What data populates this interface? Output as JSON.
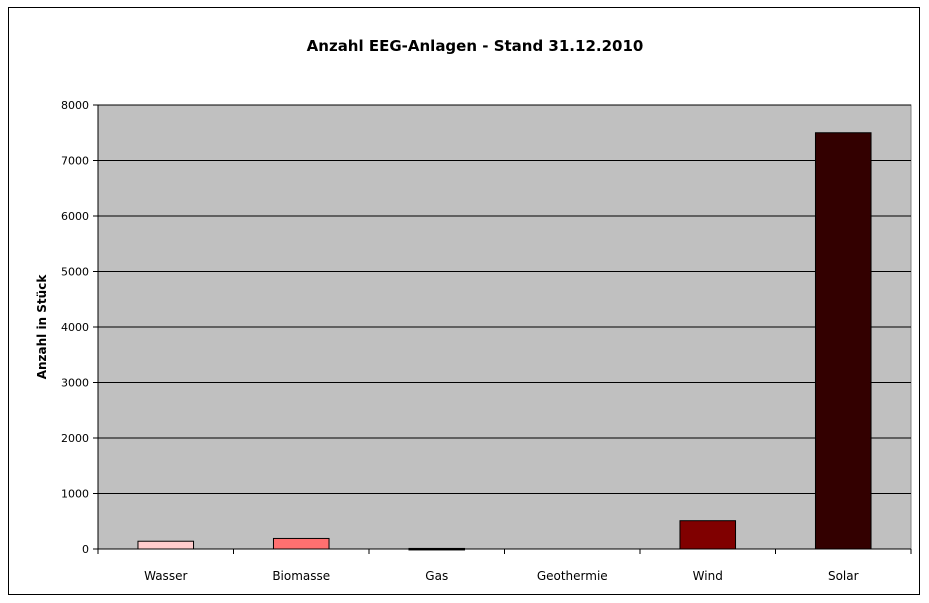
{
  "chart_data": {
    "type": "bar",
    "title": "Anzahl EEG-Anlagen - Stand 31.12.2010",
    "xlabel": "",
    "ylabel": "Anzahl in Stück",
    "categories": [
      "Wasser",
      "Biomasse",
      "Gas",
      "Geothermie",
      "Wind",
      "Solar"
    ],
    "values": [
      140,
      190,
      10,
      0,
      510,
      7500
    ],
    "colors": [
      "#ffcccc",
      "#ff7070",
      "#8b0000",
      "#a00000",
      "#800000",
      "#330000"
    ],
    "ylim": [
      0,
      8000
    ],
    "yticks": [
      0,
      1000,
      2000,
      3000,
      4000,
      5000,
      6000,
      7000,
      8000
    ],
    "grid": true,
    "plot_background": "#c0c0c0"
  }
}
